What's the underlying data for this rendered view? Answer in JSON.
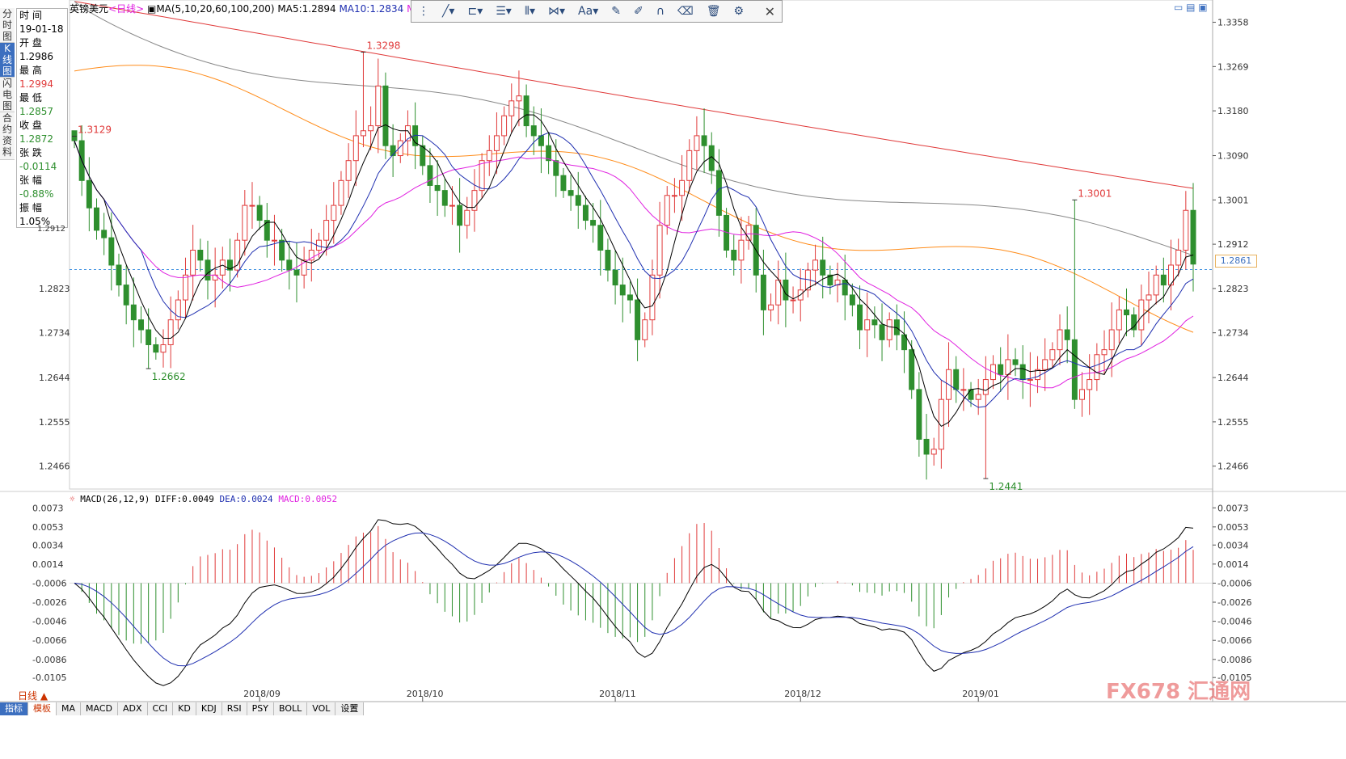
{
  "header": {
    "symbol": "英镑美元",
    "period": "<日线>",
    "ma_label": "MA(5,10,20,60,100,200)",
    "ma5_label": "MA5:1.2894",
    "ma10_label": "MA10:1.2834",
    "ma_cut": "MA"
  },
  "side_tabs": [
    "分时图",
    "K线图",
    "闪电图",
    "合约资料"
  ],
  "info_box": {
    "time_label": "时 间",
    "time_value": "19-01-18",
    "open_label": "开 盘",
    "open_value": "1.2986",
    "high_label": "最 高",
    "high_value": "1.2994",
    "low_label": "最 低",
    "low_value": "1.2857",
    "close_label": "收 盘",
    "close_value": "1.2872",
    "change_label": "张 跌",
    "change_value": "-0.0114",
    "pct_label": "张 幅",
    "pct_value": "-0.88%",
    "amp_label": "振 幅",
    "amp_value": "1.05%",
    "partial_tick": "1.2912"
  },
  "toolbar": {
    "close_icon": "close-icon",
    "text_tool": "Aa"
  },
  "right_tools": "▭ ▤ ▣",
  "price_tag": "1.2861",
  "macd_header": {
    "label": "MACD(26,12,9)",
    "diff": "DIFF:0.0049",
    "dea": "DEA:0.0024",
    "macd": "MACD:0.0052"
  },
  "day_tab": "日线 ▲",
  "bottom_tabs": [
    "指标",
    "模板",
    "MA",
    "MACD",
    "ADX",
    "CCI",
    "KD",
    "KDJ",
    "RSI",
    "PSY",
    "BOLL",
    "VOL",
    "设置"
  ],
  "watermark": "FX678 汇通网",
  "colors": {
    "up": "#e03a3a",
    "down": "#2e8f2e",
    "ma5": "#000000",
    "ma10": "#1f2fb0",
    "ma20": "#e020e0",
    "ma60": "#ff8c1a",
    "ma100": "#888888",
    "ma200": "#e03a3a",
    "current": "#3c8fe0"
  },
  "chart_data": {
    "type": "candlestick",
    "y_ticks": [
      "1.3358",
      "1.3269",
      "1.3180",
      "1.3090",
      "1.3001",
      "1.2912",
      "1.2823",
      "1.2734",
      "1.2644",
      "1.2555",
      "1.2466"
    ],
    "ylim": [
      1.242,
      1.338
    ],
    "x_labels": [
      "2018/09",
      "2018/10",
      "2018/11",
      "2018/12",
      "2019/01"
    ],
    "x_label_index": [
      25,
      47,
      73,
      98,
      122
    ],
    "current_price": 1.2861,
    "annotations": [
      {
        "text": "1.3298",
        "index": 39,
        "value": 1.3298,
        "color": "up"
      },
      {
        "text": "1.3129",
        "index": 0,
        "value": 1.3129,
        "color": "up"
      },
      {
        "text": "1.2662",
        "index": 10,
        "value": 1.2662,
        "color": "down"
      },
      {
        "text": "1.3001",
        "index": 135,
        "value": 1.3001,
        "color": "up"
      },
      {
        "text": "1.2441",
        "index": 123,
        "value": 1.2441,
        "color": "down"
      }
    ],
    "closes": [
      1.312,
      1.304,
      1.2985,
      1.294,
      1.2925,
      1.287,
      1.283,
      1.279,
      1.276,
      1.274,
      1.271,
      1.2695,
      1.271,
      1.276,
      1.28,
      1.285,
      1.29,
      1.288,
      1.284,
      1.285,
      1.288,
      1.286,
      1.292,
      1.299,
      1.299,
      1.296,
      1.292,
      1.292,
      1.288,
      1.286,
      1.285,
      1.288,
      1.29,
      1.292,
      1.296,
      1.299,
      1.304,
      1.308,
      1.313,
      1.314,
      1.315,
      1.323,
      1.311,
      1.309,
      1.312,
      1.315,
      1.311,
      1.307,
      1.303,
      1.302,
      1.299,
      1.299,
      1.295,
      1.298,
      1.302,
      1.308,
      1.31,
      1.313,
      1.317,
      1.32,
      1.321,
      1.315,
      1.313,
      1.311,
      1.308,
      1.305,
      1.302,
      1.301,
      1.299,
      1.296,
      1.295,
      1.29,
      1.286,
      1.283,
      1.281,
      1.28,
      1.272,
      1.276,
      1.285,
      1.295,
      1.301,
      1.301,
      1.304,
      1.31,
      1.313,
      1.311,
      1.306,
      1.297,
      1.29,
      1.288,
      1.292,
      1.295,
      1.285,
      1.278,
      1.279,
      1.284,
      1.28,
      1.28,
      1.282,
      1.286,
      1.288,
      1.285,
      1.283,
      1.284,
      1.281,
      1.279,
      1.274,
      1.276,
      1.275,
      1.272,
      1.276,
      1.273,
      1.27,
      1.262,
      1.252,
      1.249,
      1.25,
      1.26,
      1.266,
      1.262,
      1.262,
      1.26,
      1.261,
      1.264,
      1.267,
      1.265,
      1.268,
      1.267,
      1.264,
      1.264,
      1.266,
      1.268,
      1.27,
      1.274,
      1.272,
      1.26,
      1.262,
      1.264,
      1.269,
      1.27,
      1.274,
      1.278,
      1.277,
      1.274,
      1.28,
      1.281,
      1.285,
      1.283,
      1.287,
      1.29,
      1.298,
      1.2872
    ],
    "ma60_start": 1.326,
    "ma60_end": 1.277,
    "ma100_start": 1.34,
    "ma100_end": 1.289,
    "ma200_start": 1.34,
    "ma200_end": 1.308,
    "macd_y_ticks": [
      "0.0073",
      "0.0053",
      "0.0034",
      "0.0014",
      "-0.0006",
      "-0.0026",
      "-0.0046",
      "-0.0066",
      "-0.0086",
      "-0.0105"
    ],
    "macd_ylim": [
      -0.0115,
      0.008
    ]
  }
}
